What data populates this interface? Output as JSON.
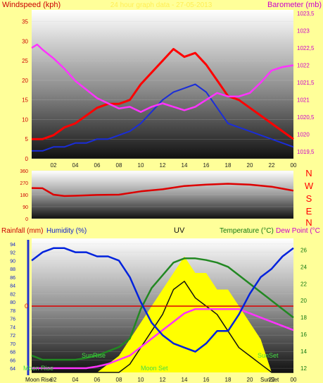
{
  "title": "24 hour graph data - 27-05-2013",
  "colors": {
    "background": "#ffff99",
    "wind_speed": "#ff0000",
    "wind_avg": "#1a2dd8",
    "barometer": "#ff33ff",
    "wind_dir": "#dd0000",
    "humidity": "#0022dd",
    "temperature": "#228822",
    "dewpoint": "#ff33ff",
    "uv": "#ffff00",
    "solar": "#111111",
    "rain": "#dd0000"
  },
  "labels": {
    "windspeed": "Windspeed (kph)",
    "barometer": "Barometer (mb)",
    "rainfall": "Rainfall (mm)",
    "humidity": "Humidity (%)",
    "uv": "UV",
    "temperature": "Temperature (°C)",
    "dewpoint": "Dew Point (°C",
    "compass": [
      "N",
      "W",
      "S",
      "E",
      "N"
    ],
    "sunrise": "SunRise",
    "sunset": "SunSet",
    "moonrise": "Moon Rise",
    "moonset": "Moon Set",
    "bottom_moonrise": "Moon Rise",
    "bottom_sunset": "SunSet"
  },
  "chart_data": [
    {
      "type": "line",
      "name": "wind-barometer",
      "x_ticks": [
        "02",
        "04",
        "06",
        "08",
        "10",
        "12",
        "14",
        "16",
        "18",
        "20",
        "22",
        "00"
      ],
      "x_range": [
        0,
        24
      ],
      "ylim_left": [
        0,
        38
      ],
      "ylim_right": [
        1019.3,
        1023.6
      ],
      "y_ticks_left": [
        0,
        5,
        10,
        15,
        20,
        25,
        30,
        35
      ],
      "y_ticks_right": [
        "1019,5",
        "1020",
        "1020,5",
        "1021",
        "1021,5",
        "1022",
        "1022,5",
        "1023",
        "1023,5"
      ],
      "series": [
        {
          "name": "Windspeed (kph)",
          "axis": "left",
          "x": [
            0,
            1,
            2,
            3,
            4,
            5,
            6,
            7,
            8,
            9,
            10,
            11,
            12,
            13,
            14,
            15,
            16,
            17,
            18,
            19,
            20,
            21,
            22,
            23,
            24
          ],
          "values": [
            5,
            5,
            6,
            8,
            9,
            11,
            13,
            14,
            14,
            15,
            19,
            22,
            25,
            28,
            26,
            27,
            24,
            20,
            16,
            15,
            13,
            11,
            9,
            7,
            5
          ]
        },
        {
          "name": "Windspeed average",
          "axis": "left",
          "x": [
            0,
            1,
            2,
            3,
            4,
            5,
            6,
            7,
            8,
            9,
            10,
            11,
            12,
            13,
            14,
            15,
            16,
            17,
            18,
            19,
            20,
            21,
            22,
            23,
            24
          ],
          "values": [
            2,
            2,
            3,
            3,
            4,
            4,
            5,
            5,
            6,
            7,
            9,
            12,
            15,
            17,
            18,
            19,
            17,
            13,
            9,
            8,
            7,
            6,
            5,
            4,
            3
          ]
        },
        {
          "name": "Barometer (mb)",
          "axis": "right",
          "x": [
            0,
            0.5,
            1,
            2,
            3,
            4,
            5,
            6,
            7,
            8,
            9,
            10,
            11,
            12,
            13,
            14,
            15,
            16,
            17,
            18,
            19,
            20,
            21,
            22,
            23,
            24
          ],
          "values": [
            1022.5,
            1022.6,
            1022.45,
            1022.2,
            1021.9,
            1021.55,
            1021.3,
            1021.05,
            1020.9,
            1020.75,
            1020.8,
            1020.65,
            1020.8,
            1020.9,
            1020.8,
            1020.7,
            1020.8,
            1021.0,
            1021.2,
            1021.1,
            1021.1,
            1021.2,
            1021.5,
            1021.85,
            1021.95,
            1022.0
          ]
        }
      ]
    },
    {
      "type": "line",
      "name": "wind-direction",
      "x_range": [
        0,
        24
      ],
      "ylim": [
        0,
        360
      ],
      "y_ticks": [
        0,
        90,
        180,
        270,
        360
      ],
      "series": [
        {
          "name": "Wind direction",
          "x": [
            0,
            1,
            2,
            3,
            4,
            6,
            8,
            10,
            12,
            14,
            16,
            18,
            20,
            22,
            23,
            24
          ],
          "values": [
            230,
            228,
            180,
            170,
            172,
            178,
            180,
            205,
            220,
            245,
            255,
            262,
            255,
            240,
            225,
            210
          ]
        }
      ]
    },
    {
      "type": "line",
      "name": "humidity-temp-uv",
      "x_ticks": [
        "02",
        "04",
        "06",
        "08",
        "10",
        "12",
        "14",
        "16",
        "18",
        "20",
        "22",
        "00"
      ],
      "x_range": [
        0,
        24
      ],
      "ylim_humidity": [
        63,
        95
      ],
      "y_ticks_humidity": [
        64,
        66,
        68,
        70,
        72,
        74,
        76,
        78,
        80,
        82,
        84,
        86,
        88,
        90,
        92,
        94
      ],
      "ylim_temp": [
        11.5,
        27.2
      ],
      "y_ticks_temp": [
        12,
        14,
        16,
        18,
        20,
        22,
        24,
        26
      ],
      "rain_value_label": "0",
      "rain_value": 0,
      "series": [
        {
          "name": "Humidity (%)",
          "x": [
            0,
            1,
            2,
            3,
            4,
            5,
            6,
            7,
            8,
            9,
            10,
            11,
            12,
            13,
            14,
            15,
            16,
            17,
            18,
            19,
            20,
            21,
            22,
            23,
            24
          ],
          "values": [
            90,
            92,
            93,
            93,
            92,
            92,
            91,
            91,
            90,
            86,
            80,
            75,
            72,
            70,
            69,
            68,
            70,
            73,
            73,
            77,
            82,
            86,
            88,
            91,
            93
          ]
        },
        {
          "name": "Temperature (°C)",
          "x": [
            0,
            1,
            2,
            3,
            4,
            5,
            6,
            7,
            8,
            9,
            10,
            11,
            12,
            13,
            14,
            15,
            16,
            17,
            18,
            19,
            20,
            21,
            22,
            23,
            24
          ],
          "values": [
            13.5,
            13,
            13,
            13,
            13,
            13.2,
            13.5,
            14,
            14.5,
            15.5,
            19,
            21.5,
            23,
            24.5,
            25,
            25,
            24.8,
            24.5,
            24,
            23,
            22,
            21,
            20,
            19,
            18
          ]
        },
        {
          "name": "Dew Point (°C",
          "x": [
            0,
            1,
            2,
            3,
            4,
            5,
            6,
            7,
            8,
            9,
            10,
            11,
            12,
            13,
            14,
            15,
            16,
            17,
            18,
            19,
            20,
            21,
            22,
            23,
            24
          ],
          "values": [
            12,
            12,
            12,
            12,
            12,
            12,
            12.2,
            12.5,
            13,
            13.5,
            14.5,
            15.5,
            16.5,
            17.5,
            18.5,
            19,
            19,
            19,
            19,
            19,
            18.5,
            18,
            17.5,
            17,
            16.5
          ]
        },
        {
          "name": "UV",
          "x": [
            0,
            6,
            7,
            8,
            9,
            10,
            11,
            12,
            13,
            14,
            15,
            16,
            17,
            18,
            19,
            20,
            21,
            22,
            24
          ],
          "values": [
            0,
            0,
            0.5,
            1,
            2,
            3,
            4,
            5,
            6,
            7,
            6,
            6,
            5,
            5,
            4,
            3,
            2,
            0,
            0
          ]
        },
        {
          "name": "Solar",
          "x": [
            0,
            8,
            9,
            10,
            11,
            12,
            13,
            14,
            15,
            16,
            17,
            18,
            19,
            20,
            21,
            22,
            24
          ],
          "values": [
            0,
            0,
            0.5,
            1.5,
            2.5,
            3.5,
            5,
            5.5,
            4.5,
            4,
            3.5,
            2.5,
            1.5,
            1,
            0.5,
            0,
            0
          ]
        }
      ]
    }
  ]
}
